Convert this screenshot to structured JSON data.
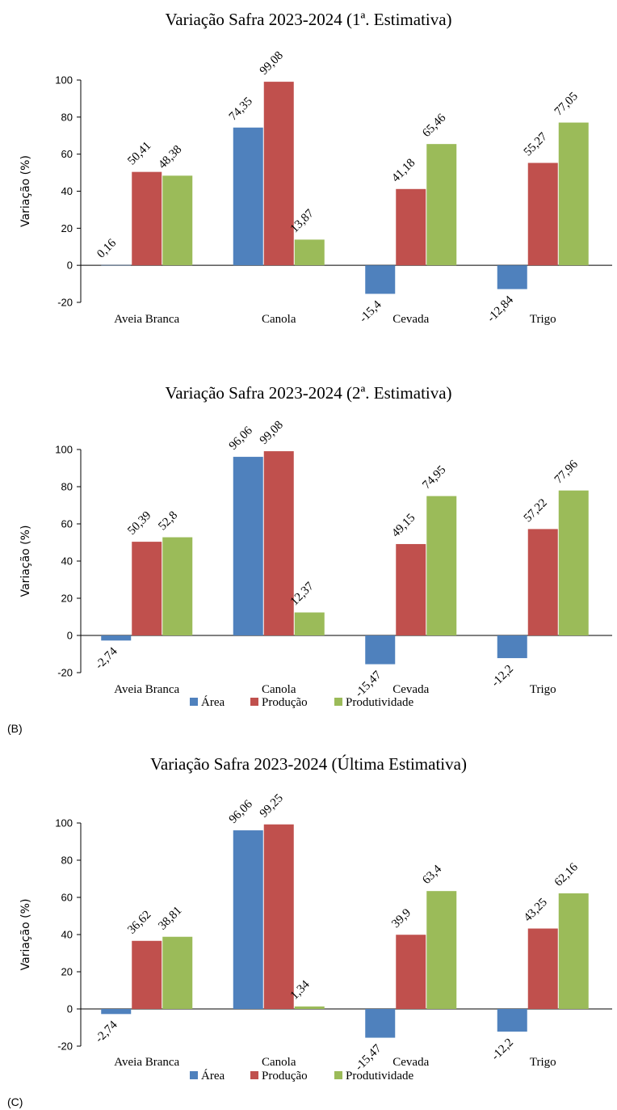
{
  "colors": {
    "area": "#4f81bd",
    "producao": "#c0504d",
    "produtividade": "#9bbb59"
  },
  "chart_data": [
    {
      "type": "bar",
      "title": "Variação Safra 2023-2024  (1ª. Estimativa)",
      "ylabel": "Variação (%)",
      "ylim": [
        -20,
        100
      ],
      "yticks": [
        -20,
        0,
        20,
        40,
        60,
        80,
        100
      ],
      "categories": [
        "Aveia Branca",
        "Canola",
        "Cevada",
        "Trigo"
      ],
      "series": [
        {
          "name": "Área",
          "values": [
            0.16,
            74.35,
            -15.4,
            -12.84
          ],
          "labels": [
            "0,16",
            "74,35",
            "-15,4",
            "-12,84"
          ]
        },
        {
          "name": "Produção",
          "values": [
            50.41,
            99.08,
            41.18,
            55.27
          ],
          "labels": [
            "50,41",
            "99,08",
            "41,18",
            "55,27"
          ]
        },
        {
          "name": "Produtividade",
          "values": [
            48.38,
            13.87,
            65.46,
            77.05
          ],
          "labels": [
            "48,38",
            "13,87",
            "65,46",
            "77,05"
          ]
        }
      ],
      "legend": null,
      "panel_label": ""
    },
    {
      "type": "bar",
      "title": "Variação Safra 2023-2024  (2ª. Estimativa)",
      "ylabel": "Variação (%)",
      "ylim": [
        -20,
        100
      ],
      "yticks": [
        -20,
        0,
        20,
        40,
        60,
        80,
        100
      ],
      "categories": [
        "Aveia Branca",
        "Canola",
        "Cevada",
        "Trigo"
      ],
      "series": [
        {
          "name": "Área",
          "values": [
            -2.74,
            96.06,
            -15.47,
            -12.2
          ],
          "labels": [
            "-2,74",
            "96,06",
            "-15,47",
            "-12,2"
          ]
        },
        {
          "name": "Produção",
          "values": [
            50.39,
            99.08,
            49.15,
            57.22
          ],
          "labels": [
            "50,39",
            "99,08",
            "49,15",
            "57,22"
          ]
        },
        {
          "name": "Produtividade",
          "values": [
            52.8,
            12.37,
            74.95,
            77.96
          ],
          "labels": [
            "52,8",
            "12,37",
            "74,95",
            "77,96"
          ]
        }
      ],
      "legend": "bottom",
      "panel_label": "(B)"
    },
    {
      "type": "bar",
      "title": "Variação Safra 2023-2024  (Última Estimativa)",
      "ylabel": "Variação (%)",
      "ylim": [
        -20,
        100
      ],
      "yticks": [
        -20,
        0,
        20,
        40,
        60,
        80,
        100
      ],
      "categories": [
        "Aveia Branca",
        "Canola",
        "Cevada",
        "Trigo"
      ],
      "series": [
        {
          "name": "Área",
          "values": [
            -2.74,
            96.06,
            -15.47,
            -12.2
          ],
          "labels": [
            "-2,74",
            "96,06",
            "-15,47",
            "-12,2"
          ]
        },
        {
          "name": "Produção",
          "values": [
            36.62,
            99.25,
            39.9,
            43.25
          ],
          "labels": [
            "36,62",
            "99,25",
            "39,9",
            "43,25"
          ]
        },
        {
          "name": "Produtividade",
          "values": [
            38.81,
            1.34,
            63.4,
            62.16
          ],
          "labels": [
            "38,81",
            "1,34",
            "63,4",
            "62,16"
          ]
        }
      ],
      "legend": "bottom",
      "panel_label": "(C)"
    }
  ]
}
